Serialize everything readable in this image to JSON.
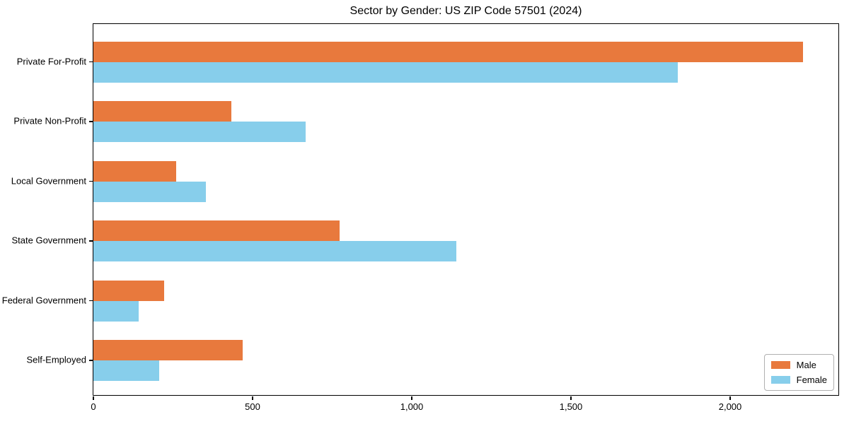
{
  "chart_data": {
    "type": "bar",
    "orientation": "horizontal",
    "title": "Sector by Gender: US ZIP Code 57501 (2024)",
    "categories": [
      "Private For-Profit",
      "Private Non-Profit",
      "Local Government",
      "State Government",
      "Federal Government",
      "Self-Employed"
    ],
    "series": [
      {
        "name": "Male",
        "color": "#e8793d",
        "values": [
          2228,
          434,
          261,
          774,
          222,
          468
        ]
      },
      {
        "name": "Female",
        "color": "#87ceeb",
        "values": [
          1836,
          667,
          353,
          1141,
          143,
          207
        ]
      }
    ],
    "xlabel": "",
    "ylabel": "",
    "xlim": [
      0,
      2340
    ],
    "x_ticks": [
      {
        "value": 0,
        "label": "0"
      },
      {
        "value": 500,
        "label": "500"
      },
      {
        "value": 1000,
        "label": "1,000"
      },
      {
        "value": 1500,
        "label": "1,500"
      },
      {
        "value": 2000,
        "label": "2,000"
      }
    ],
    "grid": false,
    "legend": {
      "location": "lower right"
    },
    "colors": {
      "spine": "#000000",
      "background": "#ffffff"
    }
  }
}
